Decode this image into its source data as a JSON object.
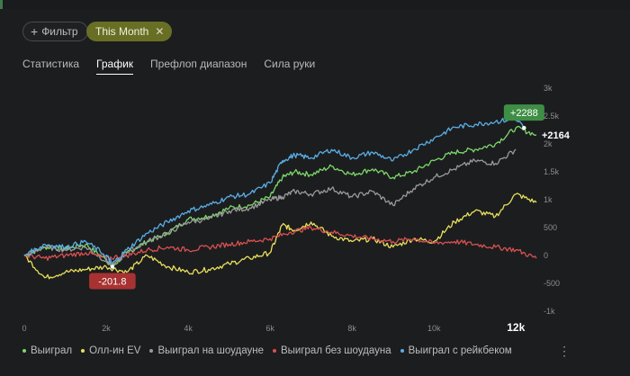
{
  "filters": {
    "add_label": "Фильтр",
    "active_chip": "This Month"
  },
  "tabs": [
    {
      "label": "Статистика",
      "active": false
    },
    {
      "label": "График",
      "active": true
    },
    {
      "label": "Префлоп диапазон",
      "active": false
    },
    {
      "label": "Сила руки",
      "active": false
    }
  ],
  "chart_data": {
    "type": "line",
    "x_ticks": [
      "0",
      "2k",
      "4k",
      "6k",
      "8k",
      "10k",
      "12k"
    ],
    "y_ticks": [
      "-1k",
      "-500",
      "0",
      "500",
      "1k",
      "1.5k",
      "2k",
      "2.5k",
      "3k"
    ],
    "xlim": [
      0,
      12500
    ],
    "ylim": [
      -1000,
      3000
    ],
    "grid": false,
    "legend_position": "bottom",
    "annotations": [
      {
        "text": "+2288",
        "x": 12200,
        "y": 2288,
        "style": "badge",
        "color": "#3f8e46"
      },
      {
        "text": "+2164",
        "x": 12500,
        "y": 2164,
        "style": "plain",
        "color": "#ffffff"
      },
      {
        "text": "-201.8",
        "x": 2150,
        "y": -201.8,
        "style": "badge",
        "color": "#a83232"
      }
    ],
    "series": [
      {
        "name": "Выиграл",
        "color": "#7cd86a",
        "x": [
          0,
          500,
          1000,
          1500,
          2000,
          2150,
          2500,
          3000,
          3500,
          4000,
          4500,
          5000,
          5500,
          6000,
          6300,
          6600,
          7000,
          7500,
          8000,
          8500,
          9000,
          9500,
          10000,
          10500,
          11000,
          11500,
          12000,
          12500
        ],
        "y": [
          0,
          150,
          120,
          200,
          -80,
          -201.8,
          50,
          250,
          400,
          650,
          700,
          850,
          900,
          1050,
          1400,
          1500,
          1450,
          1600,
          1450,
          1550,
          1400,
          1500,
          1700,
          1850,
          1900,
          2000,
          2288,
          2164
        ]
      },
      {
        "name": "Олл-ин EV",
        "color": "#e8e05a",
        "x": [
          0,
          500,
          1000,
          1500,
          2000,
          2500,
          3000,
          3500,
          4000,
          4500,
          5000,
          5500,
          6000,
          6300,
          6600,
          7000,
          7500,
          8000,
          8500,
          9000,
          9500,
          10000,
          10500,
          11000,
          11500,
          12000,
          12500
        ],
        "y": [
          0,
          -400,
          -300,
          -250,
          -200,
          -300,
          0,
          -200,
          -300,
          -250,
          -150,
          -50,
          50,
          550,
          450,
          600,
          350,
          250,
          300,
          150,
          300,
          250,
          600,
          800,
          700,
          1100,
          950
        ]
      },
      {
        "name": "Выиграл на шоудауне",
        "color": "#9a9a9a",
        "x": [
          0,
          500,
          1000,
          1500,
          2000,
          2150,
          2500,
          3000,
          3500,
          4000,
          4500,
          5000,
          5500,
          6000,
          6300,
          6600,
          7000,
          7500,
          8000,
          8500,
          9000,
          9500,
          10000,
          10500,
          11000,
          11500,
          12000
        ],
        "y": [
          0,
          150,
          100,
          150,
          -100,
          -200,
          50,
          250,
          400,
          600,
          650,
          800,
          850,
          1000,
          1050,
          1150,
          1100,
          1200,
          1050,
          1150,
          900,
          1200,
          1400,
          1550,
          1700,
          1650,
          1900
        ]
      },
      {
        "name": "Выиграл без шоудауна",
        "color": "#d95050",
        "x": [
          0,
          500,
          1000,
          1500,
          2000,
          2500,
          3000,
          3500,
          4000,
          4500,
          5000,
          5500,
          6000,
          6500,
          7000,
          7500,
          8000,
          8500,
          9000,
          9500,
          10000,
          10500,
          11000,
          11500,
          12000,
          12500
        ],
        "y": [
          0,
          -50,
          0,
          50,
          -50,
          0,
          100,
          150,
          100,
          150,
          200,
          250,
          300,
          420,
          500,
          420,
          350,
          300,
          250,
          300,
          220,
          250,
          200,
          150,
          100,
          -50
        ]
      },
      {
        "name": "Выиграл с рейкбеком",
        "color": "#5aaee6",
        "x": [
          0,
          500,
          1000,
          1500,
          2000,
          2150,
          2500,
          3000,
          3500,
          4000,
          4500,
          5000,
          5500,
          6000,
          6300,
          6600,
          7000,
          7500,
          8000,
          8500,
          9000,
          9500,
          10000,
          10500,
          11000,
          11500,
          12000,
          12200
        ],
        "y": [
          0,
          200,
          150,
          250,
          0,
          -150,
          100,
          400,
          600,
          800,
          900,
          1050,
          1100,
          1300,
          1700,
          1800,
          1750,
          1900,
          1750,
          1850,
          1700,
          1900,
          2100,
          2300,
          2350,
          2400,
          2450,
          2288
        ]
      }
    ]
  },
  "legend_more_icon": "vertical-ellipsis-icon"
}
